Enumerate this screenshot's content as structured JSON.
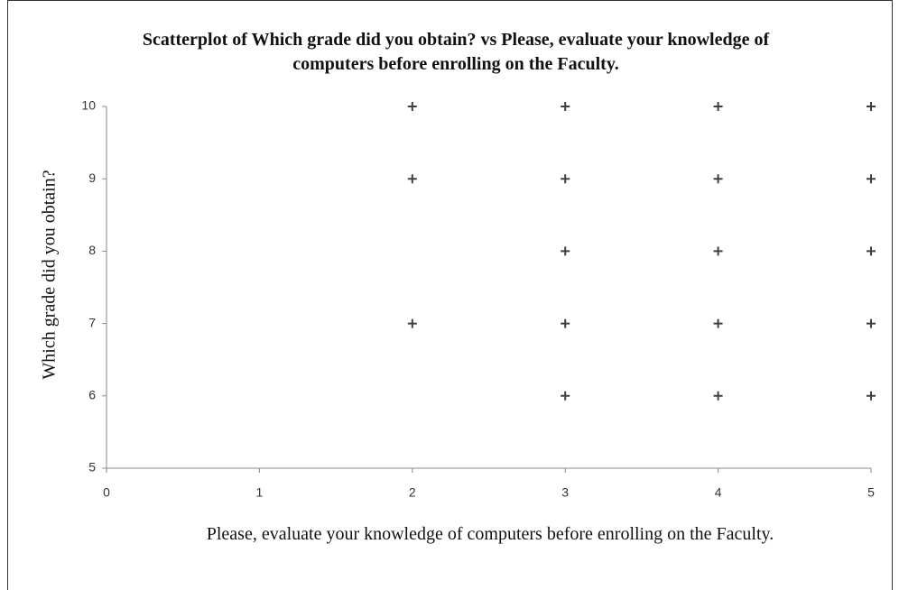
{
  "chart_data": {
    "type": "scatter",
    "title": "Scatterplot of Which grade did you obtain? vs Please, evaluate your knowledge of computers before enrolling on the Faculty.",
    "x_label": "Please, evaluate your knowledge of computers before enrolling on the Faculty.",
    "y_label": "Which grade did you obtain?",
    "x": [
      2,
      2,
      2,
      3,
      3,
      3,
      3,
      3,
      4,
      4,
      4,
      4,
      4,
      5,
      5,
      5,
      5,
      5
    ],
    "values": [
      10,
      9,
      7,
      10,
      9,
      8,
      7,
      6,
      10,
      9,
      8,
      7,
      6,
      10,
      9,
      8,
      7,
      6
    ],
    "color": "#404040",
    "xlim": [
      0,
      5
    ],
    "xticks": [
      0,
      1,
      2,
      3,
      4,
      5
    ],
    "ylim": [
      5,
      10
    ],
    "yticks": [
      5,
      6,
      7,
      8,
      9,
      10
    ]
  }
}
